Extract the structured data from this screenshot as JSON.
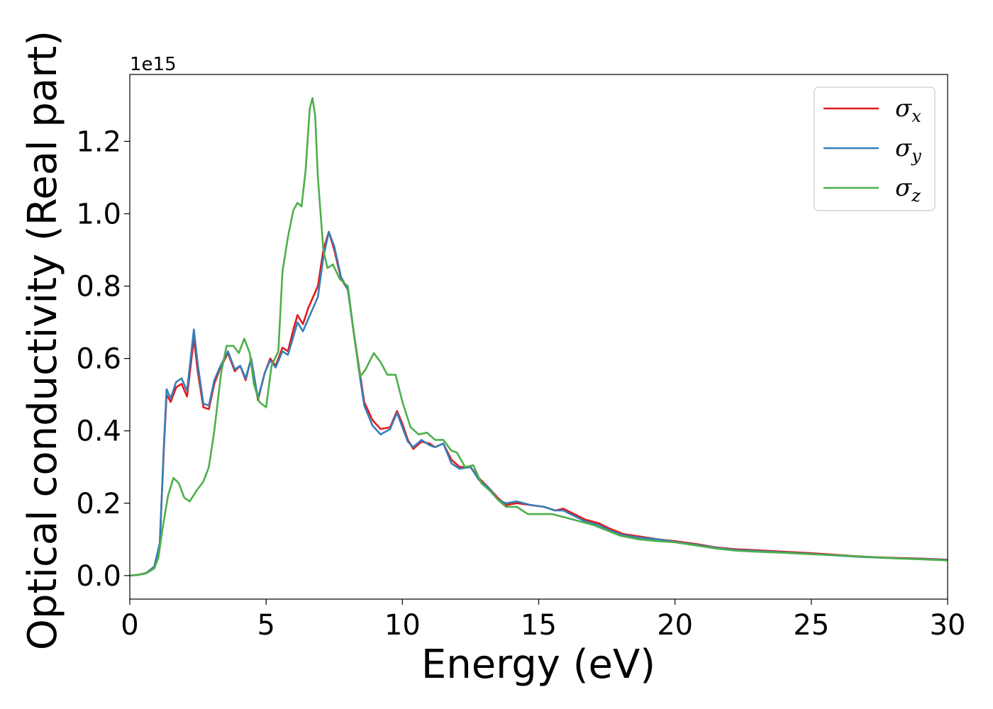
{
  "chart_data": {
    "type": "line",
    "title": "",
    "xlabel": "Energy (eV)",
    "ylabel": "Optical conductivity (Real part)",
    "y_offset_label": "1e15",
    "xlim": [
      0,
      30
    ],
    "ylim": [
      -0.065,
      1.385
    ],
    "xticks": [
      0,
      5,
      10,
      15,
      20,
      25,
      30
    ],
    "xtick_labels": [
      "0",
      "5",
      "10",
      "15",
      "20",
      "25",
      "30"
    ],
    "yticks": [
      0.0,
      0.2,
      0.4,
      0.6,
      0.8,
      1.0,
      1.2
    ],
    "ytick_labels": [
      "0.0",
      "0.2",
      "0.4",
      "0.6",
      "0.8",
      "1.0",
      "1.2"
    ],
    "grid": false,
    "legend_position": "top-right",
    "series": [
      {
        "name": "σx",
        "symbol": "σ",
        "subscript": "x",
        "color": "#e41a1c",
        "points": [
          [
            0,
            0
          ],
          [
            0.3,
            0.002
          ],
          [
            0.6,
            0.007
          ],
          [
            0.9,
            0.025
          ],
          [
            1.1,
            0.09
          ],
          [
            1.25,
            0.35
          ],
          [
            1.35,
            0.5
          ],
          [
            1.5,
            0.48
          ],
          [
            1.7,
            0.52
          ],
          [
            1.9,
            0.53
          ],
          [
            2.1,
            0.495
          ],
          [
            2.35,
            0.655
          ],
          [
            2.5,
            0.56
          ],
          [
            2.7,
            0.465
          ],
          [
            2.9,
            0.46
          ],
          [
            3.1,
            0.53
          ],
          [
            3.3,
            0.57
          ],
          [
            3.6,
            0.615
          ],
          [
            3.85,
            0.565
          ],
          [
            4.05,
            0.58
          ],
          [
            4.25,
            0.54
          ],
          [
            4.45,
            0.6
          ],
          [
            4.7,
            0.485
          ],
          [
            4.95,
            0.56
          ],
          [
            5.15,
            0.6
          ],
          [
            5.35,
            0.58
          ],
          [
            5.6,
            0.63
          ],
          [
            5.8,
            0.62
          ],
          [
            6.0,
            0.68
          ],
          [
            6.15,
            0.72
          ],
          [
            6.35,
            0.695
          ],
          [
            6.55,
            0.74
          ],
          [
            6.9,
            0.8
          ],
          [
            7.1,
            0.9
          ],
          [
            7.3,
            0.95
          ],
          [
            7.5,
            0.9
          ],
          [
            7.75,
            0.82
          ],
          [
            8.0,
            0.79
          ],
          [
            8.2,
            0.68
          ],
          [
            8.4,
            0.58
          ],
          [
            8.6,
            0.48
          ],
          [
            8.9,
            0.43
          ],
          [
            9.2,
            0.405
          ],
          [
            9.55,
            0.41
          ],
          [
            9.8,
            0.455
          ],
          [
            10.0,
            0.42
          ],
          [
            10.2,
            0.375
          ],
          [
            10.4,
            0.35
          ],
          [
            10.7,
            0.37
          ],
          [
            11.0,
            0.365
          ],
          [
            11.2,
            0.355
          ],
          [
            11.5,
            0.365
          ],
          [
            11.8,
            0.32
          ],
          [
            12.1,
            0.3
          ],
          [
            12.5,
            0.3
          ],
          [
            12.8,
            0.27
          ],
          [
            13.2,
            0.24
          ],
          [
            13.5,
            0.215
          ],
          [
            13.8,
            0.195
          ],
          [
            14.2,
            0.2
          ],
          [
            14.7,
            0.195
          ],
          [
            15.2,
            0.19
          ],
          [
            15.6,
            0.18
          ],
          [
            15.9,
            0.185
          ],
          [
            16.3,
            0.17
          ],
          [
            16.7,
            0.155
          ],
          [
            17.2,
            0.145
          ],
          [
            17.6,
            0.13
          ],
          [
            18.1,
            0.115
          ],
          [
            18.7,
            0.108
          ],
          [
            19.4,
            0.1
          ],
          [
            20.0,
            0.095
          ],
          [
            20.8,
            0.087
          ],
          [
            21.5,
            0.078
          ],
          [
            22.2,
            0.073
          ],
          [
            23.0,
            0.07
          ],
          [
            24.0,
            0.066
          ],
          [
            25.0,
            0.062
          ],
          [
            26.0,
            0.057
          ],
          [
            27.0,
            0.052
          ],
          [
            28.0,
            0.049
          ],
          [
            29.0,
            0.047
          ],
          [
            30.0,
            0.044
          ]
        ]
      },
      {
        "name": "σy",
        "symbol": "σ",
        "subscript": "y",
        "color": "#377eb8",
        "points": [
          [
            0,
            0
          ],
          [
            0.3,
            0.002
          ],
          [
            0.6,
            0.007
          ],
          [
            0.9,
            0.025
          ],
          [
            1.1,
            0.09
          ],
          [
            1.25,
            0.36
          ],
          [
            1.35,
            0.515
          ],
          [
            1.5,
            0.49
          ],
          [
            1.7,
            0.535
          ],
          [
            1.9,
            0.545
          ],
          [
            2.1,
            0.51
          ],
          [
            2.35,
            0.68
          ],
          [
            2.5,
            0.58
          ],
          [
            2.7,
            0.475
          ],
          [
            2.9,
            0.47
          ],
          [
            3.1,
            0.54
          ],
          [
            3.3,
            0.575
          ],
          [
            3.6,
            0.62
          ],
          [
            3.85,
            0.57
          ],
          [
            4.05,
            0.58
          ],
          [
            4.25,
            0.545
          ],
          [
            4.45,
            0.6
          ],
          [
            4.7,
            0.49
          ],
          [
            4.95,
            0.56
          ],
          [
            5.15,
            0.595
          ],
          [
            5.35,
            0.575
          ],
          [
            5.6,
            0.62
          ],
          [
            5.8,
            0.61
          ],
          [
            6.0,
            0.66
          ],
          [
            6.15,
            0.7
          ],
          [
            6.35,
            0.675
          ],
          [
            6.55,
            0.71
          ],
          [
            6.9,
            0.77
          ],
          [
            7.1,
            0.88
          ],
          [
            7.3,
            0.95
          ],
          [
            7.5,
            0.91
          ],
          [
            7.75,
            0.825
          ],
          [
            8.0,
            0.79
          ],
          [
            8.2,
            0.68
          ],
          [
            8.4,
            0.57
          ],
          [
            8.6,
            0.47
          ],
          [
            8.9,
            0.415
          ],
          [
            9.2,
            0.39
          ],
          [
            9.55,
            0.405
          ],
          [
            9.8,
            0.45
          ],
          [
            10.0,
            0.41
          ],
          [
            10.2,
            0.37
          ],
          [
            10.4,
            0.355
          ],
          [
            10.7,
            0.375
          ],
          [
            11.0,
            0.36
          ],
          [
            11.2,
            0.355
          ],
          [
            11.5,
            0.365
          ],
          [
            11.8,
            0.31
          ],
          [
            12.1,
            0.295
          ],
          [
            12.5,
            0.3
          ],
          [
            12.8,
            0.265
          ],
          [
            13.2,
            0.24
          ],
          [
            13.5,
            0.21
          ],
          [
            13.8,
            0.2
          ],
          [
            14.2,
            0.205
          ],
          [
            14.7,
            0.195
          ],
          [
            15.2,
            0.19
          ],
          [
            15.6,
            0.18
          ],
          [
            15.9,
            0.18
          ],
          [
            16.3,
            0.165
          ],
          [
            16.7,
            0.15
          ],
          [
            17.2,
            0.14
          ],
          [
            17.6,
            0.125
          ],
          [
            18.1,
            0.112
          ],
          [
            18.7,
            0.105
          ],
          [
            19.4,
            0.1
          ],
          [
            20.0,
            0.093
          ],
          [
            20.8,
            0.085
          ],
          [
            21.5,
            0.077
          ],
          [
            22.2,
            0.071
          ],
          [
            23.0,
            0.068
          ],
          [
            24.0,
            0.064
          ],
          [
            25.0,
            0.06
          ],
          [
            26.0,
            0.055
          ],
          [
            27.0,
            0.051
          ],
          [
            28.0,
            0.048
          ],
          [
            29.0,
            0.046
          ],
          [
            30.0,
            0.043
          ]
        ]
      },
      {
        "name": "σz",
        "symbol": "σ",
        "subscript": "z",
        "color": "#4daf4a",
        "points": [
          [
            0,
            0
          ],
          [
            0.3,
            0.002
          ],
          [
            0.6,
            0.006
          ],
          [
            0.9,
            0.02
          ],
          [
            1.05,
            0.05
          ],
          [
            1.2,
            0.13
          ],
          [
            1.4,
            0.22
          ],
          [
            1.6,
            0.27
          ],
          [
            1.8,
            0.255
          ],
          [
            2.0,
            0.215
          ],
          [
            2.2,
            0.205
          ],
          [
            2.45,
            0.235
          ],
          [
            2.7,
            0.26
          ],
          [
            2.9,
            0.3
          ],
          [
            3.1,
            0.4
          ],
          [
            3.35,
            0.56
          ],
          [
            3.55,
            0.635
          ],
          [
            3.8,
            0.635
          ],
          [
            4.0,
            0.615
          ],
          [
            4.2,
            0.655
          ],
          [
            4.4,
            0.615
          ],
          [
            4.55,
            0.53
          ],
          [
            4.75,
            0.48
          ],
          [
            5.0,
            0.465
          ],
          [
            5.2,
            0.58
          ],
          [
            5.45,
            0.62
          ],
          [
            5.6,
            0.84
          ],
          [
            5.8,
            0.935
          ],
          [
            6.0,
            1.01
          ],
          [
            6.15,
            1.03
          ],
          [
            6.3,
            1.02
          ],
          [
            6.45,
            1.12
          ],
          [
            6.6,
            1.29
          ],
          [
            6.7,
            1.32
          ],
          [
            6.8,
            1.27
          ],
          [
            6.9,
            1.1
          ],
          [
            7.1,
            0.9
          ],
          [
            7.25,
            0.85
          ],
          [
            7.45,
            0.86
          ],
          [
            7.7,
            0.82
          ],
          [
            8.0,
            0.8
          ],
          [
            8.25,
            0.65
          ],
          [
            8.45,
            0.55
          ],
          [
            8.65,
            0.57
          ],
          [
            8.95,
            0.615
          ],
          [
            9.2,
            0.59
          ],
          [
            9.45,
            0.555
          ],
          [
            9.75,
            0.555
          ],
          [
            10.0,
            0.48
          ],
          [
            10.3,
            0.41
          ],
          [
            10.6,
            0.39
          ],
          [
            10.9,
            0.395
          ],
          [
            11.2,
            0.375
          ],
          [
            11.5,
            0.375
          ],
          [
            11.8,
            0.345
          ],
          [
            12.0,
            0.34
          ],
          [
            12.3,
            0.3
          ],
          [
            12.6,
            0.305
          ],
          [
            12.9,
            0.255
          ],
          [
            13.2,
            0.235
          ],
          [
            13.5,
            0.21
          ],
          [
            13.8,
            0.19
          ],
          [
            14.2,
            0.19
          ],
          [
            14.6,
            0.17
          ],
          [
            15.0,
            0.17
          ],
          [
            15.5,
            0.17
          ],
          [
            16.0,
            0.16
          ],
          [
            16.5,
            0.15
          ],
          [
            17.0,
            0.14
          ],
          [
            17.5,
            0.125
          ],
          [
            18.0,
            0.11
          ],
          [
            18.7,
            0.1
          ],
          [
            19.4,
            0.095
          ],
          [
            20.0,
            0.092
          ],
          [
            20.8,
            0.083
          ],
          [
            21.5,
            0.075
          ],
          [
            22.2,
            0.069
          ],
          [
            23.0,
            0.066
          ],
          [
            24.0,
            0.063
          ],
          [
            25.0,
            0.059
          ],
          [
            26.0,
            0.056
          ],
          [
            27.0,
            0.052
          ],
          [
            28.0,
            0.048
          ],
          [
            29.0,
            0.045
          ],
          [
            30.0,
            0.042
          ]
        ]
      }
    ]
  }
}
